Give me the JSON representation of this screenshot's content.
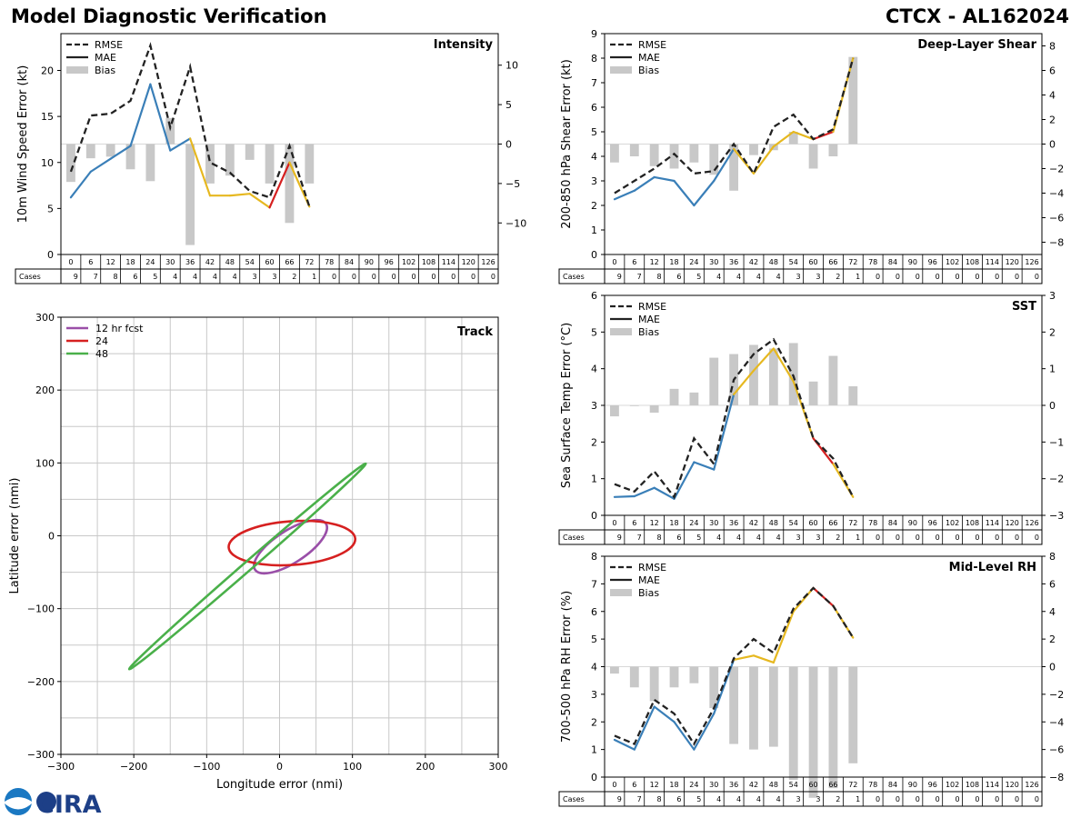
{
  "header": {
    "title": "Model Diagnostic Verification",
    "storm": "CTCX - AL162024"
  },
  "legend_labels": {
    "rmse": "RMSE",
    "mae": "MAE",
    "bias": "Bias"
  },
  "cases_label": "Cases",
  "leads": [
    0,
    6,
    12,
    18,
    24,
    30,
    36,
    42,
    48,
    54,
    60,
    66,
    72,
    78,
    84,
    90,
    96,
    102,
    108,
    114,
    120,
    126
  ],
  "cases": [
    9,
    7,
    8,
    6,
    5,
    4,
    4,
    4,
    4,
    3,
    3,
    2,
    1,
    0,
    0,
    0,
    0,
    0,
    0,
    0,
    0,
    0
  ],
  "colors": {
    "blue": "#3a7fb8",
    "yellow": "#e6b820",
    "red": "#d62020",
    "rmse": "#222222",
    "bias": "#c8c8c8",
    "grid": "#c8c8c8"
  },
  "logo": {
    "text": "CIRA"
  },
  "chart_data": [
    {
      "id": "intensity",
      "type": "line",
      "title": "Intensity",
      "ylabel": "10m Wind Speed Error (kt)",
      "ylim": [
        0,
        24
      ],
      "yticks": [
        0,
        5,
        10,
        15,
        20
      ],
      "y2lim": [
        -14,
        14
      ],
      "y2ticks": [
        -10,
        -5,
        0,
        5,
        10
      ],
      "rmse": [
        9.0,
        15.1,
        15.3,
        16.7,
        22.7,
        13.8,
        20.4,
        10.0,
        8.9,
        6.9,
        6.2,
        11.8,
        5.2
      ],
      "mae": [
        6.2,
        9.0,
        10.4,
        11.8,
        18.5,
        11.3,
        12.6,
        6.4,
        6.4,
        6.6,
        5.1,
        10.0,
        5.2
      ],
      "bias": [
        -4.8,
        -1.8,
        -1.6,
        -3.2,
        -4.7,
        3.3,
        -12.8,
        -5.0,
        -4.0,
        -2.0,
        -5.0,
        -10.0,
        -5.0
      ]
    },
    {
      "id": "shear",
      "type": "line",
      "title": "Deep-Layer Shear",
      "ylabel": "200-850 hPa Shear Error (kt)",
      "ylim": [
        0,
        9
      ],
      "yticks": [
        0,
        1,
        2,
        3,
        4,
        5,
        6,
        7,
        8,
        9
      ],
      "y2lim": [
        -9,
        9
      ],
      "y2ticks": [
        -8,
        -6,
        -4,
        -2,
        0,
        2,
        4,
        6,
        8
      ],
      "rmse": [
        2.5,
        3.0,
        3.5,
        4.1,
        3.3,
        3.4,
        4.5,
        3.3,
        5.2,
        5.7,
        4.7,
        5.1,
        8.0
      ],
      "mae": [
        2.25,
        2.6,
        3.15,
        3.0,
        2.0,
        3.0,
        4.3,
        3.3,
        4.4,
        5.0,
        4.7,
        5.0,
        8.0
      ],
      "bias": [
        -1.5,
        -1.0,
        -1.8,
        -2.0,
        -1.5,
        -2.5,
        -3.8,
        -0.9,
        -0.5,
        1.0,
        -2.0,
        -1.0,
        7.1
      ]
    },
    {
      "id": "sst",
      "type": "line",
      "title": "SST",
      "ylabel": "Sea Surface Temp Error (°C)",
      "ylim": [
        0,
        6
      ],
      "yticks": [
        0,
        1,
        2,
        3,
        4,
        5,
        6
      ],
      "y2lim": [
        -3,
        3
      ],
      "y2ticks": [
        -3,
        -2,
        -1,
        0,
        1,
        2,
        3
      ],
      "rmse": [
        0.85,
        0.65,
        1.2,
        0.5,
        2.1,
        1.4,
        3.7,
        4.4,
        4.8,
        3.8,
        2.1,
        1.55,
        0.5
      ],
      "mae": [
        0.5,
        0.52,
        0.75,
        0.45,
        1.45,
        1.25,
        3.3,
        3.95,
        4.55,
        3.65,
        2.1,
        1.4,
        0.5
      ],
      "bias": [
        -0.3,
        0.0,
        -0.2,
        0.45,
        0.35,
        1.3,
        1.4,
        1.65,
        1.55,
        1.7,
        0.65,
        1.35,
        0.52
      ]
    },
    {
      "id": "rh",
      "type": "line",
      "title": "Mid-Level RH",
      "ylabel": "700-500 hPa RH Error (%)",
      "ylim": [
        0,
        8
      ],
      "yticks": [
        0,
        1,
        2,
        3,
        4,
        5,
        6,
        7,
        8
      ],
      "y2lim": [
        -8,
        8
      ],
      "y2ticks": [
        -8,
        -6,
        -4,
        -2,
        0,
        2,
        4,
        6,
        8
      ],
      "rmse": [
        1.5,
        1.2,
        2.8,
        2.3,
        1.2,
        2.5,
        4.3,
        5.0,
        4.5,
        6.1,
        6.85,
        6.2,
        5.05
      ],
      "mae": [
        1.35,
        1.0,
        2.55,
        2.0,
        1.0,
        2.3,
        4.25,
        4.4,
        4.15,
        6.0,
        6.85,
        6.2,
        5.05
      ],
      "bias": [
        -0.5,
        -1.5,
        -2.5,
        -1.5,
        -1.2,
        -3.0,
        -5.6,
        -6.0,
        -5.8,
        -8.2,
        -9.5,
        -8.8,
        -7.0
      ]
    },
    {
      "id": "track",
      "type": "scatter",
      "title": "Track",
      "xlabel": "Longitude error (nmi)",
      "ylabel": "Latitude error (nmi)",
      "xlim": [
        -300,
        300
      ],
      "ylim": [
        -300,
        300
      ],
      "ticks": [
        -300,
        -200,
        -100,
        0,
        100,
        200,
        300
      ],
      "legend": [
        "12 hr fcst",
        "24",
        "48"
      ],
      "ellipses": [
        {
          "label": "12 hr fcst",
          "color": "#9a4fa8",
          "cx": 15,
          "cy": -15,
          "a": 58,
          "b": 22,
          "angle": 33
        },
        {
          "label": "24",
          "color": "#d62020",
          "cx": 17,
          "cy": -10,
          "a": 87,
          "b": 30,
          "angle": 4
        },
        {
          "label": "48",
          "color": "#4ab04a",
          "cx": -44,
          "cy": -42,
          "a": 215,
          "b": 6,
          "angle": 41
        }
      ]
    }
  ]
}
